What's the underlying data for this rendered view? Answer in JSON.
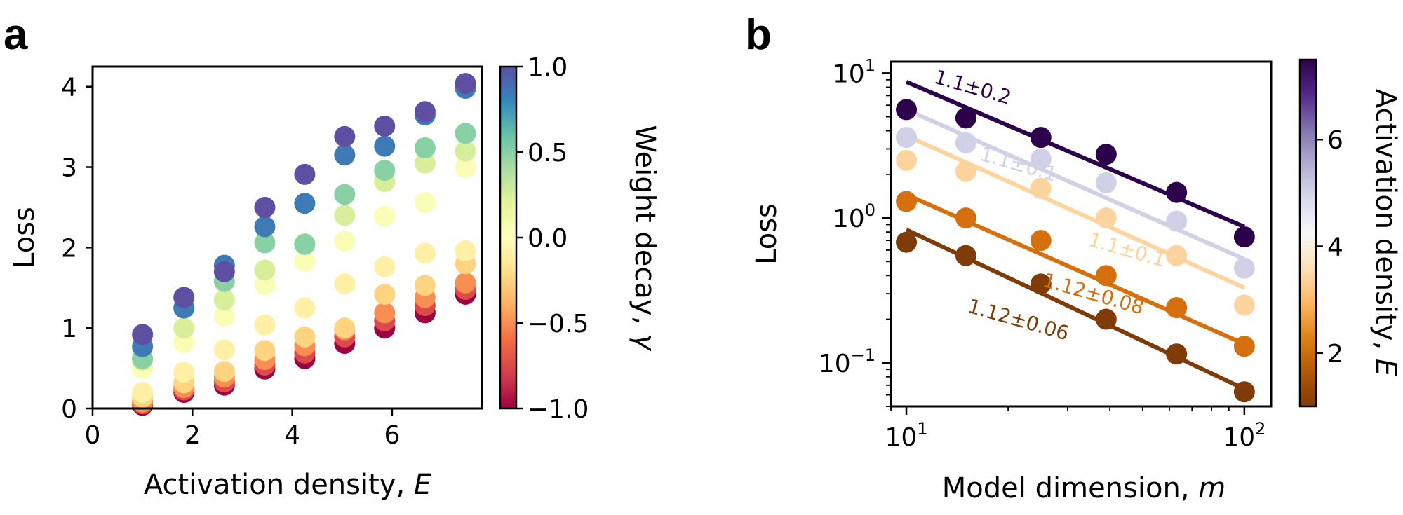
{
  "chart_data": [
    {
      "panel": "a",
      "type": "scatter",
      "xlabel": "Activation density, ",
      "xlabel_var": "E",
      "ylabel": "Loss",
      "xlim": [
        0,
        7.8
      ],
      "ylim": [
        0,
        4.25
      ],
      "xticks": [
        0,
        2,
        4,
        6
      ],
      "yticks": [
        0,
        1,
        2,
        3,
        4
      ],
      "colorbar": {
        "label": "Weight decay, ",
        "label_var": "γ",
        "range": [
          -1.0,
          1.0
        ],
        "ticks": [
          -1.0,
          -0.5,
          0.0,
          0.5,
          1.0
        ],
        "tick_labels": [
          "−1.0",
          "−0.5",
          "0.0",
          "0.5",
          "1.0"
        ],
        "colormap": "Spectral",
        "colors": [
          "#9e0142",
          "#d53e4f",
          "#f46d43",
          "#fdae61",
          "#fee08b",
          "#ffffbf",
          "#e6f598",
          "#abdda4",
          "#66c2a5",
          "#3288bd",
          "#5e4fa2"
        ]
      },
      "x": [
        1,
        1.83,
        2.64,
        3.45,
        4.25,
        5.05,
        5.85,
        6.66,
        7.47
      ],
      "series": [
        {
          "gamma": -1.0,
          "values": [
            0.04,
            0.2,
            0.29,
            0.49,
            0.62,
            0.81,
            1.0,
            1.19,
            1.42
          ]
        },
        {
          "gamma": -0.75,
          "values": [
            0.06,
            0.23,
            0.33,
            0.54,
            0.69,
            0.89,
            1.09,
            1.28,
            1.48
          ]
        },
        {
          "gamma": -0.5,
          "values": [
            0.08,
            0.26,
            0.39,
            0.61,
            0.78,
            0.98,
            1.19,
            1.38,
            1.56
          ]
        },
        {
          "gamma": -0.25,
          "values": [
            0.14,
            0.32,
            0.46,
            0.72,
            0.89,
            1.0,
            1.42,
            1.53,
            1.8
          ]
        },
        {
          "gamma": -0.1,
          "values": [
            0.2,
            0.45,
            0.73,
            1.04,
            1.25,
            1.55,
            1.76,
            1.93,
            1.96
          ]
        },
        {
          "gamma": 0.05,
          "values": [
            0.5,
            0.82,
            1.15,
            1.54,
            1.83,
            2.08,
            2.39,
            2.56,
            3.0
          ]
        },
        {
          "gamma": 0.25,
          "values": [
            0.6,
            1.0,
            1.35,
            1.72,
            2.05,
            2.4,
            2.82,
            3.05,
            3.2
          ]
        },
        {
          "gamma": 0.5,
          "values": [
            0.62,
            1.25,
            1.58,
            2.06,
            2.04,
            2.66,
            2.96,
            3.24,
            3.42
          ]
        },
        {
          "gamma": 0.85,
          "values": [
            0.77,
            1.25,
            1.78,
            2.26,
            2.55,
            3.15,
            3.26,
            3.65,
            3.98
          ]
        },
        {
          "gamma": 1.0,
          "values": [
            0.92,
            1.38,
            1.7,
            2.5,
            2.91,
            3.38,
            3.51,
            3.69,
            4.04
          ]
        }
      ]
    },
    {
      "panel": "b",
      "type": "scatter",
      "xlabel": "Model dimension, ",
      "xlabel_var": "m",
      "ylabel": "Loss",
      "xscale": "log",
      "yscale": "log",
      "xlim": [
        9,
        120
      ],
      "ylim": [
        0.05,
        12
      ],
      "xticks": [
        {
          "value": 10,
          "base": "10",
          "exp": "1"
        },
        {
          "value": 100,
          "base": "10",
          "exp": "2"
        }
      ],
      "yticks": [
        {
          "value": 0.1,
          "base": "10",
          "exp": "−1"
        },
        {
          "value": 1,
          "base": "10",
          "exp": "0"
        },
        {
          "value": 10,
          "base": "10",
          "exp": "1"
        }
      ],
      "colorbar": {
        "label": "Activation density, ",
        "label_var": "E",
        "range": [
          1,
          7.5
        ],
        "ticks": [
          2,
          4,
          6
        ],
        "tick_labels": [
          "2",
          "4",
          "6"
        ],
        "colormap": "PuOr",
        "colors": [
          "#7f3b08",
          "#b35806",
          "#e08214",
          "#fdb863",
          "#fee0b6",
          "#f7f7f7",
          "#d8daeb",
          "#b2abd2",
          "#8073ac",
          "#542788",
          "#2d004b"
        ]
      },
      "x": [
        10,
        15,
        25,
        39,
        63,
        100
      ],
      "series": [
        {
          "E": 7.5,
          "color": "#2d004b",
          "values": [
            5.6,
            4.9,
            3.6,
            2.75,
            1.5,
            0.74
          ],
          "fit": {
            "x": [
              10,
              100
            ],
            "y": [
              8.7,
              0.87
            ]
          },
          "label": "1.1±0.2"
        },
        {
          "E": 5.2,
          "color": "#d0d1e6",
          "values": [
            3.6,
            3.3,
            2.55,
            1.75,
            0.95,
            0.45
          ],
          "fit": {
            "x": [
              10,
              100
            ],
            "y": [
              5.6,
              0.52
            ]
          },
          "label": "1.1±0.1"
        },
        {
          "E": 3.2,
          "color": "#fdd49e",
          "values": [
            2.5,
            2.1,
            1.6,
            1.0,
            0.55,
            0.25
          ],
          "fit": {
            "x": [
              10,
              100
            ],
            "y": [
              3.7,
              0.33
            ]
          },
          "label": "1.1±0.1"
        },
        {
          "E": 2.0,
          "color": "#d6700f",
          "values": [
            1.3,
            1.0,
            0.7,
            0.4,
            0.24,
            0.13
          ],
          "fit": {
            "x": [
              10,
              100
            ],
            "y": [
              1.45,
              0.135
            ]
          },
          "label": "1.12±0.08"
        },
        {
          "E": 1.0,
          "color": "#7f3b08",
          "values": [
            0.68,
            0.55,
            0.35,
            0.2,
            0.115,
            0.063
          ],
          "fit": {
            "x": [
              10,
              100
            ],
            "y": [
              0.83,
              0.066
            ]
          },
          "label": "1.12±0.06"
        }
      ]
    }
  ]
}
